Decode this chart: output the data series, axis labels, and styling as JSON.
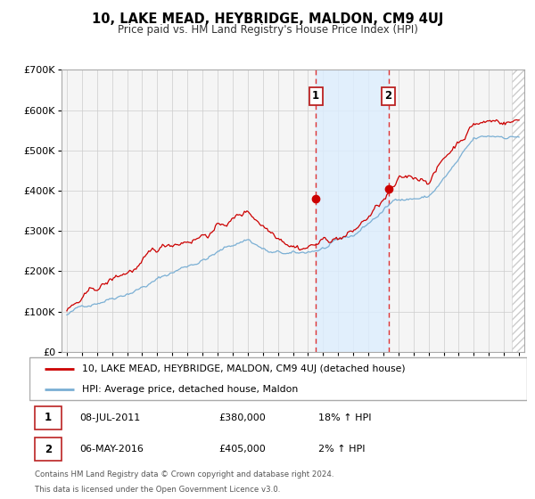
{
  "title": "10, LAKE MEAD, HEYBRIDGE, MALDON, CM9 4UJ",
  "subtitle": "Price paid vs. HM Land Registry's House Price Index (HPI)",
  "ylim": [
    0,
    700000
  ],
  "yticks": [
    0,
    100000,
    200000,
    300000,
    400000,
    500000,
    600000,
    700000
  ],
  "ytick_labels": [
    "£0",
    "£100K",
    "£200K",
    "£300K",
    "£400K",
    "£500K",
    "£600K",
    "£700K"
  ],
  "xstart_year": 1995,
  "xend_year": 2025,
  "sale1_year": 2011.52,
  "sale1_price": 380000,
  "sale1_label": "1",
  "sale1_date": "08-JUL-2011",
  "sale1_hpi_pct": "18%",
  "sale2_year": 2016.34,
  "sale2_price": 405000,
  "sale2_label": "2",
  "sale2_date": "06-MAY-2016",
  "sale2_hpi_pct": "2%",
  "red_line_color": "#cc0000",
  "blue_line_color": "#7aafd4",
  "shade_color": "#ddeeff",
  "background_color": "#f5f5f5",
  "grid_color": "#cccccc",
  "legend_label_red": "10, LAKE MEAD, HEYBRIDGE, MALDON, CM9 4UJ (detached house)",
  "legend_label_blue": "HPI: Average price, detached house, Maldon",
  "table_row1": [
    "1",
    "08-JUL-2011",
    "£380,000",
    "18% ↑ HPI"
  ],
  "table_row2": [
    "2",
    "06-MAY-2016",
    "£405,000",
    "2% ↑ HPI"
  ],
  "footer1": "Contains HM Land Registry data © Crown copyright and database right 2024.",
  "footer2": "This data is licensed under the Open Government Licence v3.0."
}
